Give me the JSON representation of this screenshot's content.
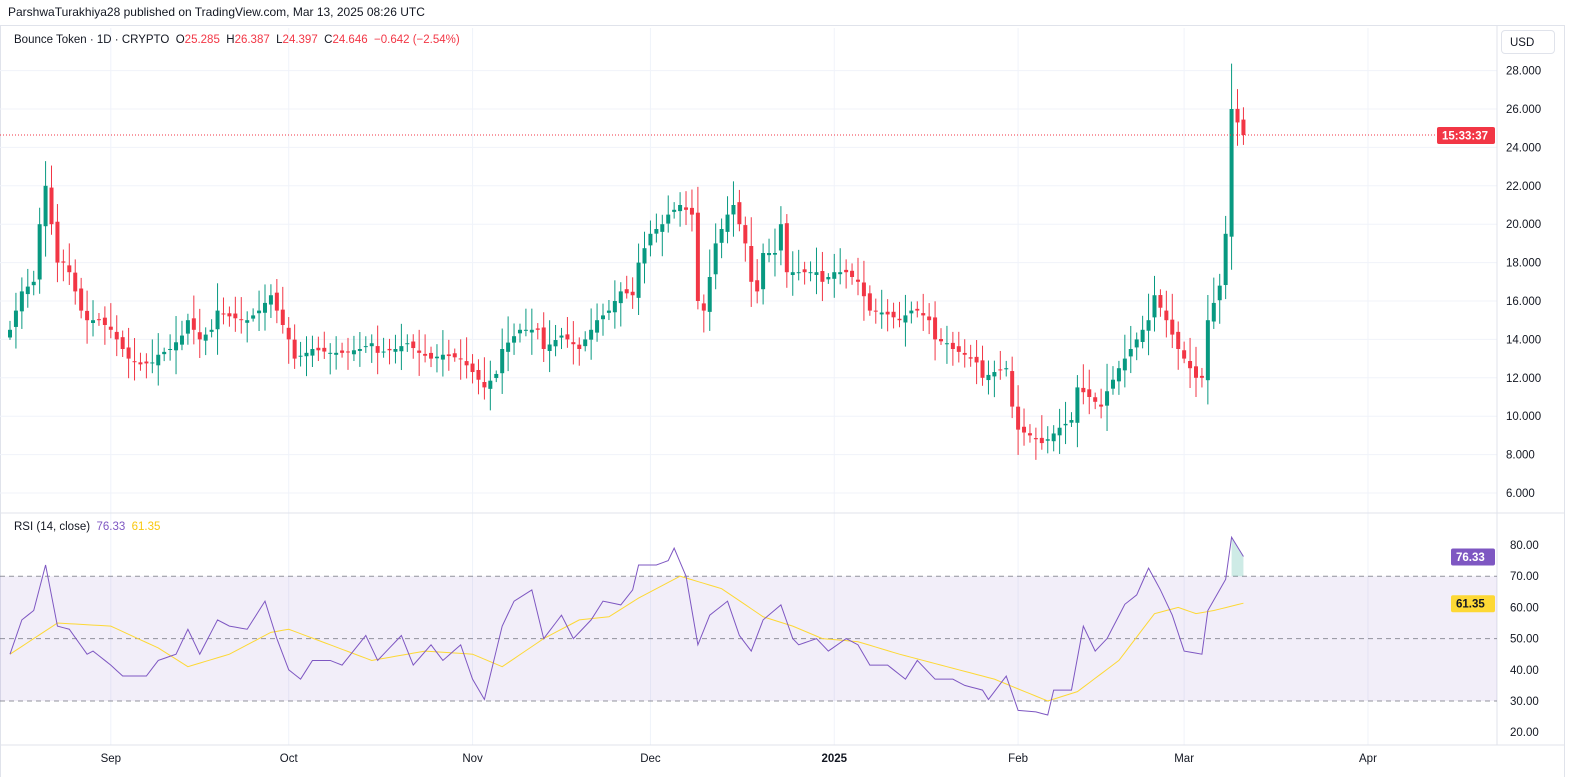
{
  "header": {
    "published": "ParshwaTurakhiya28 published on TradingView.com, Mar 13, 2025 08:26 UTC"
  },
  "legend": {
    "symbol": "Bounce Token · 1D · CRYPTO",
    "o_label": "O",
    "o": "25.285",
    "h_label": "H",
    "h": "26.387",
    "l_label": "L",
    "l": "24.397",
    "c_label": "C",
    "c": "24.646",
    "change": "−0.642 (−2.54%)"
  },
  "currency_button": "USD",
  "countdown_label": "15:33:37",
  "rsi_legend": {
    "title": "RSI (14, close)",
    "rsi": "76.33",
    "ma": "61.35"
  },
  "colors": {
    "up": "#089981",
    "down": "#f23645",
    "rsi": "#7e57c2",
    "rsi_ma": "#fdd835",
    "band": "#7e57c2"
  },
  "chart_data": [
    {
      "type": "candlestick",
      "title": "Bounce Token 1D",
      "ylim": [
        6,
        28
      ],
      "y_ticks": [
        "6.000",
        "8.000",
        "10.000",
        "12.000",
        "14.000",
        "16.000",
        "18.000",
        "20.000",
        "22.000",
        "24.000",
        "26.000",
        "28.000"
      ],
      "x_ticks": [
        {
          "day": 17,
          "label": "Sep"
        },
        {
          "day": 47,
          "label": "Oct"
        },
        {
          "day": 78,
          "label": "Nov"
        },
        {
          "day": 108,
          "label": "Dec"
        },
        {
          "day": 139,
          "label": "2025"
        },
        {
          "day": 170,
          "label": "Feb"
        },
        {
          "day": 198,
          "label": "Mar"
        },
        {
          "day": 229,
          "label": "Apr"
        }
      ],
      "last_price": 24.646,
      "close_keypoints_day_value": [
        [
          0,
          14.5
        ],
        [
          2,
          16.5
        ],
        [
          4,
          17
        ],
        [
          5,
          20
        ],
        [
          6,
          22
        ],
        [
          8,
          18
        ],
        [
          9,
          18
        ],
        [
          10,
          17.5
        ],
        [
          12,
          15.5
        ],
        [
          13,
          15
        ],
        [
          15,
          15
        ],
        [
          17,
          14.5
        ],
        [
          19,
          13.5
        ],
        [
          20,
          13
        ],
        [
          22,
          12.7
        ],
        [
          24,
          12.8
        ],
        [
          25,
          13.2
        ],
        [
          27,
          13.5
        ],
        [
          29,
          14.2
        ],
        [
          30,
          15
        ],
        [
          32,
          14
        ],
        [
          34,
          14.5
        ],
        [
          35,
          15.5
        ],
        [
          37,
          15.2
        ],
        [
          39,
          15
        ],
        [
          40,
          15
        ],
        [
          42,
          15.5
        ],
        [
          44,
          16.3
        ],
        [
          45,
          15.5
        ],
        [
          47,
          14
        ],
        [
          48,
          13
        ],
        [
          50,
          13.3
        ],
        [
          51,
          13.5
        ],
        [
          54,
          13.3
        ],
        [
          56,
          13.3
        ],
        [
          59,
          13.5
        ],
        [
          61,
          13.8
        ],
        [
          62,
          13.3
        ],
        [
          65,
          13.5
        ],
        [
          67,
          13.8
        ],
        [
          69,
          13.3
        ],
        [
          71,
          13
        ],
        [
          73,
          13.2
        ],
        [
          76,
          13
        ],
        [
          78,
          12.3
        ],
        [
          80,
          11.5
        ],
        [
          82,
          12.2
        ],
        [
          83,
          13.5
        ],
        [
          86,
          14.5
        ],
        [
          89,
          14.5
        ],
        [
          90,
          13.5
        ],
        [
          93,
          14.2
        ],
        [
          94,
          14
        ],
        [
          96,
          13.5
        ],
        [
          98,
          14.5
        ],
        [
          99,
          15
        ],
        [
          101,
          15.5
        ],
        [
          103,
          16.5
        ],
        [
          105,
          16.3
        ],
        [
          106,
          18
        ],
        [
          108,
          19.5
        ],
        [
          110,
          20
        ],
        [
          111,
          20.5
        ],
        [
          113,
          21
        ],
        [
          115,
          20.5
        ],
        [
          116,
          16
        ],
        [
          117,
          15.5
        ],
        [
          119,
          19
        ],
        [
          121,
          20.5
        ],
        [
          122,
          21
        ],
        [
          124,
          19
        ],
        [
          125,
          17
        ],
        [
          126,
          16.5
        ],
        [
          127,
          18.5
        ],
        [
          129,
          18.5
        ],
        [
          130,
          20
        ],
        [
          131,
          17.5
        ],
        [
          132,
          17.5
        ],
        [
          134,
          17.5
        ],
        [
          136,
          17.5
        ],
        [
          137,
          17
        ],
        [
          139,
          17.5
        ],
        [
          141,
          17.5
        ],
        [
          143,
          17
        ],
        [
          145,
          15.5
        ],
        [
          147,
          15.4
        ],
        [
          148,
          15.3
        ],
        [
          150,
          15
        ],
        [
          152,
          15.5
        ],
        [
          153,
          15.5
        ],
        [
          155,
          15
        ],
        [
          156,
          14
        ],
        [
          158,
          13.8
        ],
        [
          159,
          13.5
        ],
        [
          161,
          13.2
        ],
        [
          163,
          12.8
        ],
        [
          164,
          12
        ],
        [
          166,
          12.3
        ],
        [
          168,
          12.5
        ],
        [
          169,
          10.5
        ],
        [
          170,
          9.3
        ],
        [
          172,
          9
        ],
        [
          174,
          8.6
        ],
        [
          175,
          8.8
        ],
        [
          177,
          9.4
        ],
        [
          179,
          9.8
        ],
        [
          180,
          11.5
        ],
        [
          182,
          11
        ],
        [
          184,
          10.5
        ],
        [
          185,
          11.3
        ],
        [
          187,
          12.5
        ],
        [
          189,
          13.5
        ],
        [
          191,
          14.5
        ],
        [
          192,
          15
        ],
        [
          193,
          16.3
        ],
        [
          195,
          15
        ],
        [
          197,
          13.5
        ],
        [
          198,
          13
        ],
        [
          200,
          12
        ],
        [
          201,
          12
        ],
        [
          202,
          15
        ],
        [
          204,
          16.8
        ],
        [
          205,
          19.5
        ],
        [
          206,
          26
        ],
        [
          207,
          25.3
        ],
        [
          208,
          24.646
        ]
      ]
    },
    {
      "type": "line",
      "title": "RSI (14, close)",
      "ylim": [
        20,
        85
      ],
      "y_ticks": [
        "20.00",
        "30.00",
        "40.00",
        "50.00",
        "60.00",
        "70.00",
        "80.00"
      ],
      "bands": [
        30,
        50,
        70
      ],
      "rsi_keypoints_day_value": [
        [
          0,
          45
        ],
        [
          2,
          56
        ],
        [
          4,
          59
        ],
        [
          6,
          73.6
        ],
        [
          8,
          54
        ],
        [
          10,
          53
        ],
        [
          13,
          45
        ],
        [
          14,
          46
        ],
        [
          17,
          41.5
        ],
        [
          19,
          38
        ],
        [
          23,
          38
        ],
        [
          25,
          43
        ],
        [
          28,
          45
        ],
        [
          30,
          53
        ],
        [
          32,
          45
        ],
        [
          35,
          56
        ],
        [
          37,
          54
        ],
        [
          40,
          53
        ],
        [
          43,
          62
        ],
        [
          45,
          50
        ],
        [
          47,
          40
        ],
        [
          49,
          37
        ],
        [
          51,
          43
        ],
        [
          54,
          43
        ],
        [
          56,
          41.5
        ],
        [
          60,
          51
        ],
        [
          62,
          43
        ],
        [
          66,
          51
        ],
        [
          68,
          41.5
        ],
        [
          71,
          48
        ],
        [
          73,
          43
        ],
        [
          76,
          48
        ],
        [
          78,
          37
        ],
        [
          80,
          30.5
        ],
        [
          83,
          54
        ],
        [
          85,
          62
        ],
        [
          88,
          65.6
        ],
        [
          90,
          50
        ],
        [
          93,
          57.5
        ],
        [
          95,
          50
        ],
        [
          98,
          56
        ],
        [
          100,
          62
        ],
        [
          103,
          60.8
        ],
        [
          105,
          65.6
        ],
        [
          106,
          73.6
        ],
        [
          109,
          73.6
        ],
        [
          111,
          75
        ],
        [
          112,
          79
        ],
        [
          114,
          70
        ],
        [
          116,
          48
        ],
        [
          118,
          57.5
        ],
        [
          121,
          62
        ],
        [
          123,
          51
        ],
        [
          125,
          46
        ],
        [
          127,
          56
        ],
        [
          130,
          60.8
        ],
        [
          132,
          50
        ],
        [
          133,
          48
        ],
        [
          136,
          50
        ],
        [
          138,
          46
        ],
        [
          141,
          50
        ],
        [
          143,
          48
        ],
        [
          145,
          41.5
        ],
        [
          148,
          41.5
        ],
        [
          151,
          37
        ],
        [
          153,
          43
        ],
        [
          156,
          37
        ],
        [
          159,
          37
        ],
        [
          161,
          35
        ],
        [
          164,
          33.5
        ],
        [
          165,
          30.5
        ],
        [
          168,
          38
        ],
        [
          170,
          27
        ],
        [
          173,
          26.5
        ],
        [
          175,
          25.5
        ],
        [
          176,
          33.5
        ],
        [
          179,
          33.5
        ],
        [
          181,
          54
        ],
        [
          183,
          46
        ],
        [
          185,
          50
        ],
        [
          188,
          61
        ],
        [
          190,
          64
        ],
        [
          192,
          72.6
        ],
        [
          194,
          65.6
        ],
        [
          196,
          57.5
        ],
        [
          198,
          46
        ],
        [
          201,
          45
        ],
        [
          202,
          59
        ],
        [
          205,
          69
        ],
        [
          206,
          82.5
        ],
        [
          208,
          76.33
        ]
      ],
      "ma_keypoints_day_value": [
        [
          0,
          45
        ],
        [
          8,
          55
        ],
        [
          17,
          54
        ],
        [
          25,
          47
        ],
        [
          30,
          41
        ],
        [
          37,
          45
        ],
        [
          44,
          52
        ],
        [
          47,
          53
        ],
        [
          54,
          48
        ],
        [
          61,
          43
        ],
        [
          70,
          46
        ],
        [
          78,
          45
        ],
        [
          83,
          41
        ],
        [
          90,
          50
        ],
        [
          96,
          56
        ],
        [
          101,
          57
        ],
        [
          106,
          63
        ],
        [
          113,
          70
        ],
        [
          120,
          66
        ],
        [
          127,
          57
        ],
        [
          132,
          54
        ],
        [
          137,
          50
        ],
        [
          143,
          49
        ],
        [
          150,
          45
        ],
        [
          160,
          40
        ],
        [
          166,
          37
        ],
        [
          175,
          30
        ],
        [
          180,
          33
        ],
        [
          187,
          43
        ],
        [
          193,
          58
        ],
        [
          197,
          60
        ],
        [
          200,
          58
        ],
        [
          203,
          59
        ],
        [
          208,
          61.35
        ]
      ]
    }
  ]
}
